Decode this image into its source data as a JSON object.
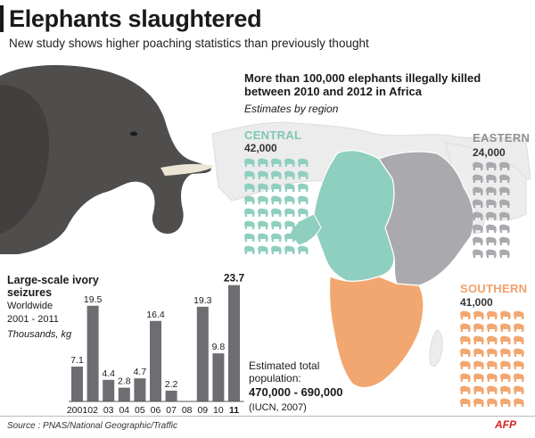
{
  "header": {
    "title": "Elephants slaughtered",
    "subtitle": "New study shows higher poaching statistics than previously thought"
  },
  "map": {
    "headline": "More than 100,000 elephants illegally killed between 2010 and 2012 in Africa",
    "estimates_label": "Estimates by region",
    "regions": [
      {
        "name": "CENTRAL",
        "value": "42,000",
        "color": "#8fcfbf"
      },
      {
        "name": "EASTERN",
        "value": "24,000",
        "color": "#a9a9ae"
      },
      {
        "name": "SOUTHERN",
        "value": "41,000",
        "color": "#f2a771"
      }
    ],
    "population": {
      "label": "Estimated total population:",
      "value": "470,000 - 690,000",
      "source": "(IUCN, 2007)"
    }
  },
  "chart_data": {
    "type": "bar",
    "title": "Large-scale ivory seizures",
    "subtitle_1": "Worldwide",
    "subtitle_2": "2001 - 2011",
    "unit": "Thousands, kg",
    "categories": [
      "2001",
      "02",
      "03",
      "04",
      "05",
      "06",
      "07",
      "08",
      "09",
      "10",
      "11"
    ],
    "values": [
      7.1,
      19.5,
      4.4,
      2.8,
      4.7,
      16.4,
      2.2,
      0,
      19.3,
      9.8,
      23.7
    ],
    "value_labels": [
      "7.1",
      "19.5",
      "4.4",
      "2.8",
      "4.7",
      "16.4",
      "2.2",
      "",
      "19.3",
      "9.8",
      "23.7"
    ],
    "highlight_last": true,
    "ylim": [
      0,
      24
    ],
    "bar_color": "#6d6e71"
  },
  "footer": {
    "source": "Source : PNAS/National Geographic/Traffic",
    "logo_text": "AFP"
  }
}
